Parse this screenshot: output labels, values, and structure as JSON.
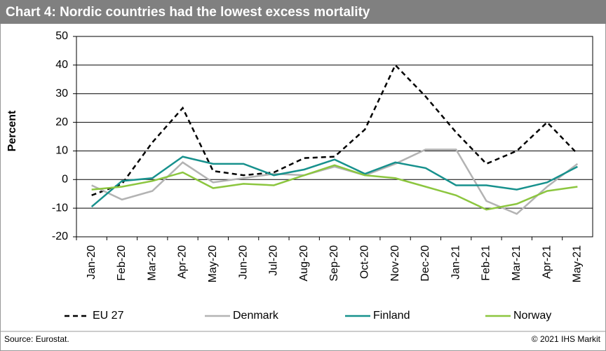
{
  "chart_data": {
    "type": "line",
    "title": "Chart 4: Nordic countries had the lowest excess mortality",
    "y_label": "Percent",
    "categories": [
      "Jan-20",
      "Feb-20",
      "Mar-20",
      "Apr-20",
      "May-20",
      "Jun-20",
      "Jul-20",
      "Aug-20",
      "Sep-20",
      "Oct-20",
      "Nov-20",
      "Dec-20",
      "Jan-21",
      "Feb-21",
      "Mar-21",
      "Apr-21",
      "May-21"
    ],
    "series": [
      {
        "name": "EU 27",
        "color": "#000000",
        "line_style": "dashed",
        "values": [
          -5.5,
          -1.5,
          13,
          25,
          3,
          1.5,
          2.5,
          7.5,
          8,
          17.5,
          40,
          29,
          16.5,
          5.5,
          10,
          20,
          9
        ]
      },
      {
        "name": "Denmark",
        "color": "#b3b3b3",
        "line_style": "solid",
        "values": [
          -2,
          -7,
          -4,
          6,
          -1,
          0.5,
          2,
          1.5,
          4.5,
          1.5,
          5.5,
          10.5,
          10.5,
          -7.5,
          -12,
          -2.5,
          5.5
        ]
      },
      {
        "name": "Finland",
        "color": "#17918d",
        "line_style": "solid",
        "values": [
          -9.5,
          -0.5,
          0.5,
          8,
          5.5,
          5.5,
          1.5,
          3.5,
          7,
          2,
          6,
          4,
          -2,
          -2,
          -3.5,
          -1,
          4.5
        ]
      },
      {
        "name": "Norway",
        "color": "#8cc63f",
        "line_style": "solid",
        "values": [
          -3.5,
          -2.5,
          -0.5,
          2.5,
          -3,
          -1.5,
          -2,
          1.5,
          5,
          1.5,
          0.5,
          -2.5,
          -5.5,
          -10.5,
          -8.5,
          -4,
          -2.5
        ]
      }
    ],
    "ylim": [
      -20,
      50
    ],
    "yticks": [
      -20,
      -10,
      0,
      10,
      20,
      30,
      40,
      50
    ],
    "grid": true,
    "legend": "bottom",
    "source": "Source: Eurostat.",
    "copyright": "© 2021 IHS Markit"
  }
}
